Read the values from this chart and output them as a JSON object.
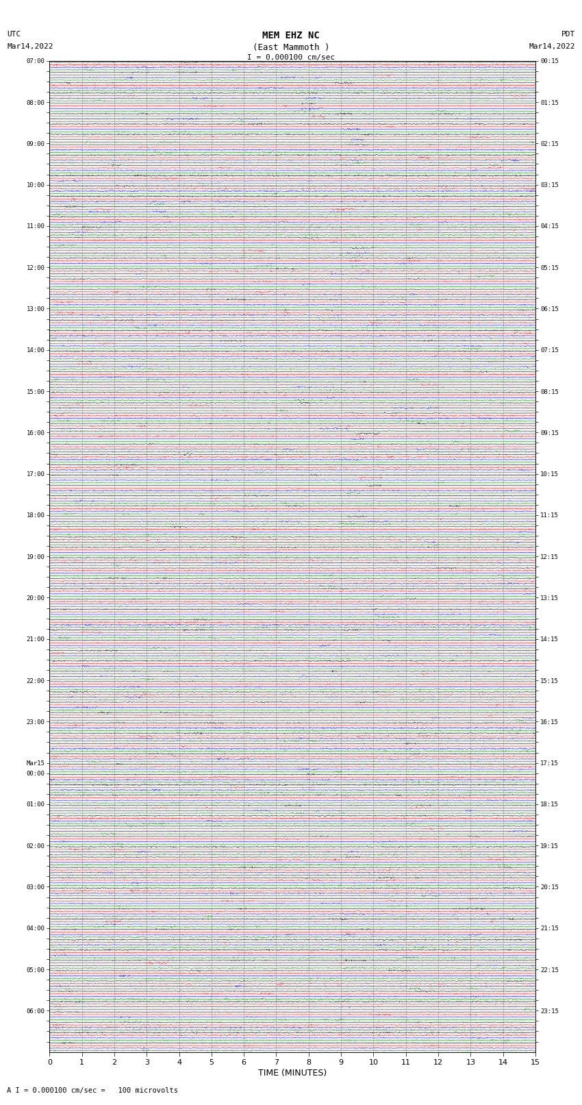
{
  "title_line1": "MEM EHZ NC",
  "title_line2": "(East Mammoth )",
  "title_line3": "I = 0.000100 cm/sec",
  "left_header_line1": "UTC",
  "left_header_line2": "Mar14,2022",
  "right_header_line1": "PDT",
  "right_header_line2": "Mar14,2022",
  "footer_text": "A I = 0.000100 cm/sec =   100 microvolts",
  "xlabel": "TIME (MINUTES)",
  "xlim": [
    0,
    15
  ],
  "xticks": [
    0,
    1,
    2,
    3,
    4,
    5,
    6,
    7,
    8,
    9,
    10,
    11,
    12,
    13,
    14,
    15
  ],
  "bg_color": "#ffffff",
  "grid_color": "#aaaaaa",
  "trace_colors": [
    "black",
    "red",
    "blue",
    "green"
  ],
  "minutes": 15,
  "n_samples": 1500,
  "left_times_utc": [
    "07:00",
    "",
    "",
    "",
    "08:00",
    "",
    "",
    "",
    "09:00",
    "",
    "",
    "",
    "10:00",
    "",
    "",
    "",
    "11:00",
    "",
    "",
    "",
    "12:00",
    "",
    "",
    "",
    "13:00",
    "",
    "",
    "",
    "14:00",
    "",
    "",
    "",
    "15:00",
    "",
    "",
    "",
    "16:00",
    "",
    "",
    "",
    "17:00",
    "",
    "",
    "",
    "18:00",
    "",
    "",
    "",
    "19:00",
    "",
    "",
    "",
    "20:00",
    "",
    "",
    "",
    "21:00",
    "",
    "",
    "",
    "22:00",
    "",
    "",
    "",
    "23:00",
    "",
    "",
    "",
    "Mar15",
    "00:00",
    "",
    "",
    "01:00",
    "",
    "",
    "",
    "02:00",
    "",
    "",
    "",
    "03:00",
    "",
    "",
    "",
    "04:00",
    "",
    "",
    "",
    "05:00",
    "",
    "",
    "",
    "06:00",
    "",
    "",
    ""
  ],
  "right_times_pdt": [
    "00:15",
    "",
    "",
    "",
    "01:15",
    "",
    "",
    "",
    "02:15",
    "",
    "",
    "",
    "03:15",
    "",
    "",
    "",
    "04:15",
    "",
    "",
    "",
    "05:15",
    "",
    "",
    "",
    "06:15",
    "",
    "",
    "",
    "07:15",
    "",
    "",
    "",
    "08:15",
    "",
    "",
    "",
    "09:15",
    "",
    "",
    "",
    "10:15",
    "",
    "",
    "",
    "11:15",
    "",
    "",
    "",
    "12:15",
    "",
    "",
    "",
    "13:15",
    "",
    "",
    "",
    "14:15",
    "",
    "",
    "",
    "15:15",
    "",
    "",
    "",
    "16:15",
    "",
    "",
    "",
    "17:15",
    "",
    "",
    "",
    "18:15",
    "",
    "",
    "",
    "19:15",
    "",
    "",
    "",
    "20:15",
    "",
    "",
    "",
    "21:15",
    "",
    "",
    "",
    "22:15",
    "",
    "",
    "",
    "23:15",
    "",
    "",
    ""
  ]
}
